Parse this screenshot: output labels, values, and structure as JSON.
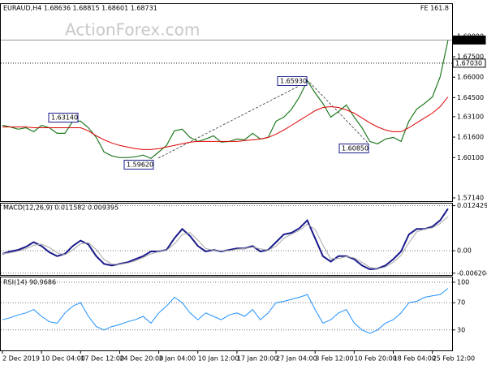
{
  "chart_data": {
    "type": "line",
    "title": "EURAUD,H4  1.68636 1.68815 1.68601 1.68731",
    "watermark": "ActionForex.com",
    "fe_label": "FE 161.8",
    "categories": [
      "2 Dec 2019",
      null,
      null,
      null,
      null,
      "10 Dec 04:00",
      null,
      null,
      null,
      null,
      "17 Dec 12:00",
      null,
      null,
      null,
      null,
      "24 Dec 20:00",
      null,
      null,
      null,
      null,
      "3 Jan 04:00",
      null,
      null,
      null,
      null,
      "10 Jan 12:00",
      null,
      null,
      null,
      null,
      "17 Jan 20:00",
      null,
      null,
      null,
      null,
      "27 Jan 04:00",
      null,
      null,
      null,
      null,
      "3 Feb 12:00",
      null,
      null,
      null,
      null,
      "10 Feb 20:00",
      null,
      null,
      null,
      null,
      "18 Feb 04:00",
      null,
      null,
      null,
      null,
      "25 Feb 12:00",
      null,
      null
    ],
    "ylim": [
      1.569,
      1.7137
    ],
    "yticks": [
      {
        "value": 1.69,
        "label": "1.69000"
      },
      {
        "value": 1.675,
        "label": "1.67500"
      },
      {
        "value": 1.66,
        "label": "1.66000"
      },
      {
        "value": 1.645,
        "label": "1.64500"
      },
      {
        "value": 1.631,
        "label": "1.63100"
      },
      {
        "value": 1.616,
        "label": "1.61600"
      },
      {
        "value": 1.601,
        "label": "1.60100"
      },
      {
        "value": 1.5714,
        "label": "1.57140"
      }
    ],
    "series": [
      {
        "color": "#1f7a1f",
        "values": [
          1.6247,
          1.6235,
          1.6218,
          1.6229,
          1.62,
          1.6247,
          1.6229,
          1.6188,
          1.6188,
          1.6277,
          1.6277,
          1.6229,
          1.6158,
          1.6051,
          1.6022,
          1.601,
          1.601,
          1.6016,
          1.6028,
          1.6004,
          1.6051,
          1.6099,
          1.6206,
          1.6218,
          1.6158,
          1.6128,
          1.6146,
          1.617,
          1.6123,
          1.6128,
          1.6146,
          1.614,
          1.6188,
          1.6146,
          1.6158,
          1.6277,
          1.6307,
          1.6366,
          1.6455,
          1.6574,
          1.6485,
          1.6407,
          1.6307,
          1.6348,
          1.6396,
          1.6307,
          1.6229,
          1.6128,
          1.6111,
          1.6146,
          1.6158,
          1.6128,
          1.6277,
          1.6366,
          1.6407,
          1.6455,
          1.6603,
          1.687
        ]
      },
      {
        "color": "#e00000",
        "values": [
          1.6235,
          1.6235,
          1.6235,
          1.6235,
          1.6229,
          1.6229,
          1.6229,
          1.6229,
          1.6229,
          1.6229,
          1.6229,
          1.6206,
          1.617,
          1.614,
          1.6117,
          1.6099,
          1.6087,
          1.6075,
          1.6069,
          1.6069,
          1.6075,
          1.6087,
          1.6099,
          1.6111,
          1.6123,
          1.6128,
          1.6128,
          1.6128,
          1.6128,
          1.6128,
          1.6128,
          1.6134,
          1.614,
          1.6146,
          1.6158,
          1.6182,
          1.6212,
          1.6247,
          1.6283,
          1.6318,
          1.6354,
          1.6378,
          1.6384,
          1.6378,
          1.636,
          1.6336,
          1.6301,
          1.6265,
          1.6235,
          1.6212,
          1.62,
          1.62,
          1.6229,
          1.6265,
          1.6301,
          1.6336,
          1.6384,
          1.6455
        ]
      }
    ],
    "price_lines": [
      {
        "value": 1.68731,
        "label": "1.68731"
      },
      {
        "value": 1.6703,
        "label": "1.67030"
      }
    ],
    "annotations": [
      "1.63140",
      "1.59620",
      "1.65930",
      "1.60850"
    ],
    "macd": {
      "label": "MACD(12,26,9) 0.011582 0.009395",
      "ylim": [
        -0.0067,
        0.013
      ],
      "yticks": [
        0.012429,
        {
          "value": 0,
          "label": "0.00"
        },
        -0.006204
      ],
      "series": [
        {
          "color": "#1a1a8c",
          "values": [
            -0.00086,
            -0.00021,
            0.00021,
            0.00107,
            0.00236,
            0.00129,
            -0.00043,
            -0.0015,
            -0.00086,
            0.00129,
            0.00279,
            0.00171,
            -0.0015,
            -0.00364,
            -0.00407,
            -0.00364,
            -0.00321,
            -0.00236,
            -0.0015,
            -0.00021,
            -0.00021,
            0.00021,
            0.00343,
            0.006,
            0.00407,
            0.00129,
            -0.00021,
            0.00021,
            -0.00021,
            0.00021,
            0.00064,
            0.00064,
            0.00129,
            -0.00021,
            0.00021,
            0.00236,
            0.0045,
            0.00493,
            0.00621,
            0.00836,
            0.00343,
            -0.0015,
            -0.003,
            -0.0015,
            -0.0015,
            -0.00236,
            -0.00407,
            -0.00514,
            -0.00493,
            -0.00407,
            -0.00236,
            -0.00021,
            0.0045,
            0.006,
            0.006,
            0.00664,
            0.00836,
            0.011582
          ]
        },
        {
          "color": "#a8a8a8",
          "values": [
            -0.0008,
            -0.0006,
            -0.0001,
            0.0005,
            0.0015,
            0.0018,
            0.0009,
            -0.0006,
            -0.0011,
            0.0002,
            0.0019,
            0.0022,
            0.0003,
            -0.0024,
            -0.0037,
            -0.0038,
            -0.0034,
            -0.0028,
            -0.0019,
            -0.0009,
            -0.0002,
            0.0001,
            0.0019,
            0.0044,
            0.005,
            0.0029,
            0.0006,
            0.0001,
            0.0,
            0.0,
            0.0004,
            0.0006,
            0.001,
            0.0005,
            0.0001,
            0.0013,
            0.0034,
            0.0046,
            0.0056,
            0.0073,
            0.0059,
            0.0015,
            -0.0022,
            -0.0022,
            -0.0016,
            -0.002,
            -0.0032,
            -0.0046,
            -0.005,
            -0.0045,
            -0.0032,
            -0.0013,
            0.0022,
            0.0052,
            0.006,
            0.0063,
            0.0075,
            0.009395
          ]
        }
      ]
    },
    "rsi": {
      "label": "RSI(14) 90.9686",
      "ylim": [
        0,
        100
      ],
      "yticks": [
        100,
        70,
        30
      ],
      "series": [
        {
          "color": "#1e90ff",
          "values": [
            45,
            48,
            52,
            55,
            60,
            50,
            42,
            40,
            55,
            65,
            70,
            50,
            35,
            30,
            35,
            38,
            42,
            45,
            50,
            40,
            55,
            65,
            78,
            70,
            55,
            45,
            55,
            50,
            45,
            52,
            55,
            50,
            60,
            45,
            55,
            70,
            72,
            75,
            78,
            82,
            60,
            40,
            45,
            55,
            60,
            40,
            30,
            25,
            30,
            40,
            45,
            55,
            70,
            72,
            78,
            80,
            82,
            90.9686
          ]
        }
      ]
    }
  }
}
